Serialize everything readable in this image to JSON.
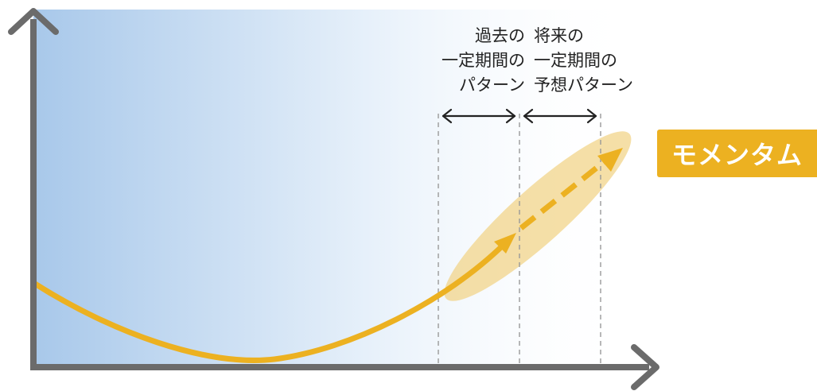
{
  "past_window": {
    "lines": [
      "過去の",
      "一定期間の",
      "パターン"
    ]
  },
  "future_window": {
    "lines": [
      "将来の",
      "一定期間の",
      "予想パターン"
    ]
  },
  "momentum_label": "モメンタム",
  "colors": {
    "axis": "#6b6b6b",
    "curve": "#ecb121",
    "glow": "#f2d48a",
    "badge_background": "#ecb121",
    "badge_text": "#ffffff",
    "gradient_start": "#a8c8ea",
    "gradient_end": "#ffffff",
    "bracket_arrow": "#222222",
    "guide_line": "#999999"
  },
  "icons": {
    "axis_heads": "arrow-head-icon",
    "window_brackets": "double-arrow-icon"
  }
}
